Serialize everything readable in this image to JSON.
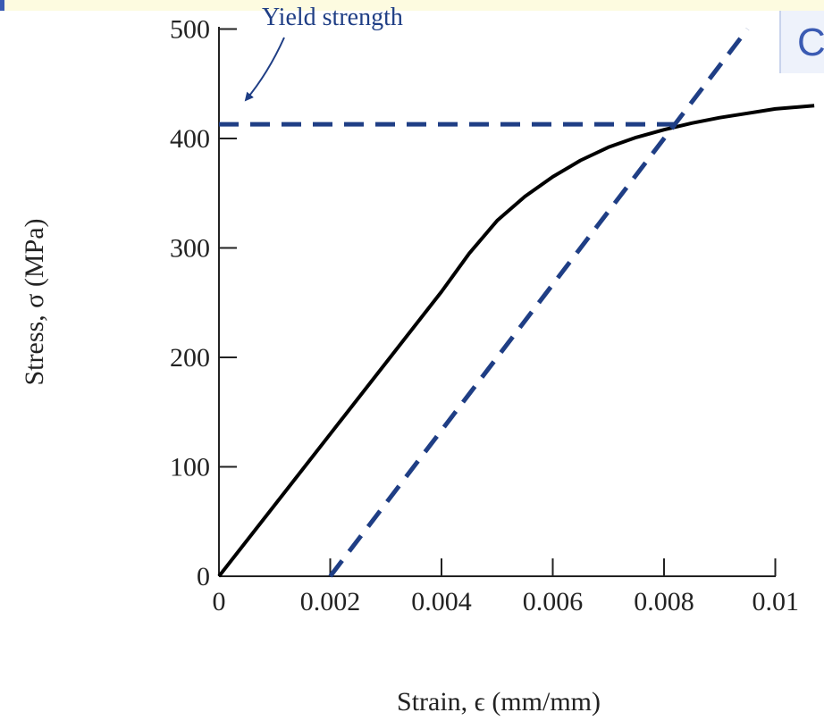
{
  "chart_data": {
    "type": "line",
    "xlabel": "Strain, ϵ (mm/mm)",
    "ylabel": "Stress, σ (MPa)",
    "xlim": [
      0,
      0.01
    ],
    "ylim": [
      0,
      500
    ],
    "x_ticks": [
      0,
      0.002,
      0.004,
      0.006,
      0.008,
      0.01
    ],
    "x_tick_labels": [
      "0",
      "0.002",
      "0.004",
      "0.006",
      "0.008",
      "0.01"
    ],
    "y_ticks": [
      0,
      100,
      200,
      300,
      400,
      500
    ],
    "y_tick_labels": [
      "0",
      "100",
      "200",
      "300",
      "400",
      "500"
    ],
    "grid": false,
    "series": [
      {
        "style": "solid",
        "color": "#000000",
        "x": [
          0,
          0.001,
          0.002,
          0.003,
          0.004,
          0.0045,
          0.005,
          0.0055,
          0.006,
          0.0065,
          0.007,
          0.0075,
          0.008,
          0.0085,
          0.009,
          0.0095,
          0.01,
          0.0107
        ],
        "y": [
          0,
          65,
          130,
          195,
          260,
          295,
          325,
          347,
          365,
          380,
          392,
          401,
          408,
          414,
          419,
          423,
          427,
          430
        ]
      },
      {
        "style": "dashed",
        "color": "#1f3e85",
        "x": [
          0.002,
          0.0095
        ],
        "y": [
          0,
          500
        ]
      },
      {
        "style": "dashed",
        "color": "#1f3e85",
        "x": [
          0,
          0.0083
        ],
        "y": [
          413,
          413
        ]
      }
    ],
    "annotations": [
      {
        "text": "Yield strength",
        "color": "#1f3e85"
      }
    ]
  },
  "header": {
    "title_fragment": "C"
  }
}
